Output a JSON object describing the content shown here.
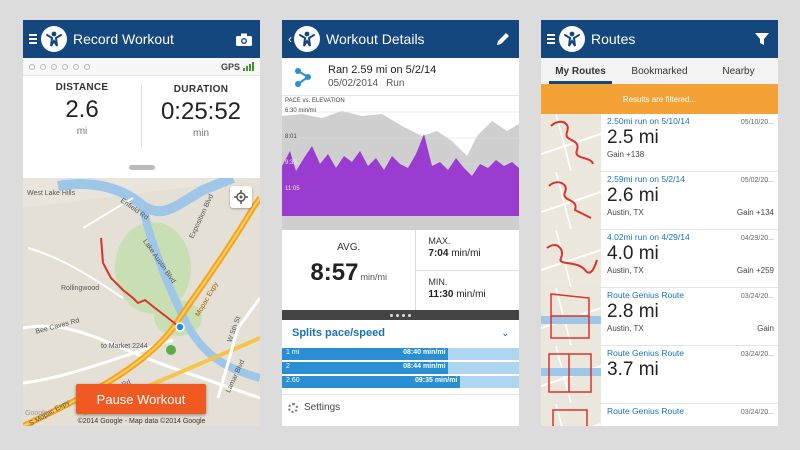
{
  "colors": {
    "appbar": "#14477e",
    "accent": "#f05a22",
    "blue": "#1b73b9",
    "banner": "#f4a135",
    "purple": "#9a3ccf"
  },
  "record": {
    "title": "Record Workout",
    "camera_icon": "camera-icon",
    "gps_label": "GPS",
    "distance_label": "DISTANCE",
    "distance_value": "2.6",
    "distance_unit": "mi",
    "duration_label": "DURATION",
    "duration_value": "0:25:52",
    "duration_unit": "min",
    "map_labels": {
      "west_lake_hills": "West Lake Hills",
      "enfield": "Enfield Rd",
      "exposition": "Exposition Blvd",
      "lake_austin": "Lake Austin Blvd",
      "rollingwood": "Rollingwood",
      "bee_caves": "Bee Caves Rd",
      "market": "to Market 2244",
      "frontage": "Frontage Rd",
      "mopac": "S Mopac Expy",
      "w5th": "W 5th St",
      "lamar": "Lamar Blvd",
      "mopac2": "Mopac Expy"
    },
    "pause_label": "Pause Workout",
    "copyright": "©2014 Google - Map data ©2014 Google",
    "google": "Google"
  },
  "details": {
    "title": "Workout Details",
    "workout_title": "Ran 2.59 mi on 5/2/14",
    "workout_date": "05/02/2014",
    "workout_type": "Run",
    "chart_title": "PACE vs. ELEVATION",
    "chart_ticks": [
      "6:30 min/mi",
      "8:01",
      "9:33",
      "11:05"
    ],
    "avg_label": "AVG.",
    "avg_value": "8:57",
    "avg_unit": "min/mi",
    "max_label": "MAX.",
    "max_value": "7:04",
    "max_unit": "min/mi",
    "min_label": "MIN.",
    "min_value": "11:30",
    "min_unit": "min/mi",
    "splits_title": "Splits pace/speed",
    "splits": [
      {
        "label": "1 mi",
        "time": "08:40 min/mi",
        "fill": 0.7
      },
      {
        "label": "2",
        "time": "08:44 min/mi",
        "fill": 0.7
      },
      {
        "label": "2.60",
        "time": "09:35 min/mi",
        "fill": 0.75
      }
    ],
    "settings_label": "Settings"
  },
  "routes": {
    "title": "Routes",
    "tabs": [
      "My Routes",
      "Bookmarked",
      "Nearby"
    ],
    "banner": "Results are filtered...",
    "items": [
      {
        "name": "2.50mi run on 5/10/14",
        "date": "05/10/20...",
        "distance": "2.5 mi",
        "left": "Gain +138",
        "right": ""
      },
      {
        "name": "2.59mi run on 5/2/14",
        "date": "05/02/20...",
        "distance": "2.6 mi",
        "left": "Austin, TX",
        "right": "Gain +134"
      },
      {
        "name": "4.02mi run on 4/29/14",
        "date": "04/29/20...",
        "distance": "4.0 mi",
        "left": "Austin, TX",
        "right": "Gain +259"
      },
      {
        "name": "Route Genius Route",
        "date": "03/24/20...",
        "distance": "2.8 mi",
        "left": "Austin, TX",
        "right": "Gain"
      },
      {
        "name": "Route Genius Route",
        "date": "03/24/20...",
        "distance": "3.7 mi",
        "left": "",
        "right": ""
      },
      {
        "name": "Route Genius Route",
        "date": "03/24/20...",
        "distance": "",
        "left": "",
        "right": ""
      }
    ]
  }
}
